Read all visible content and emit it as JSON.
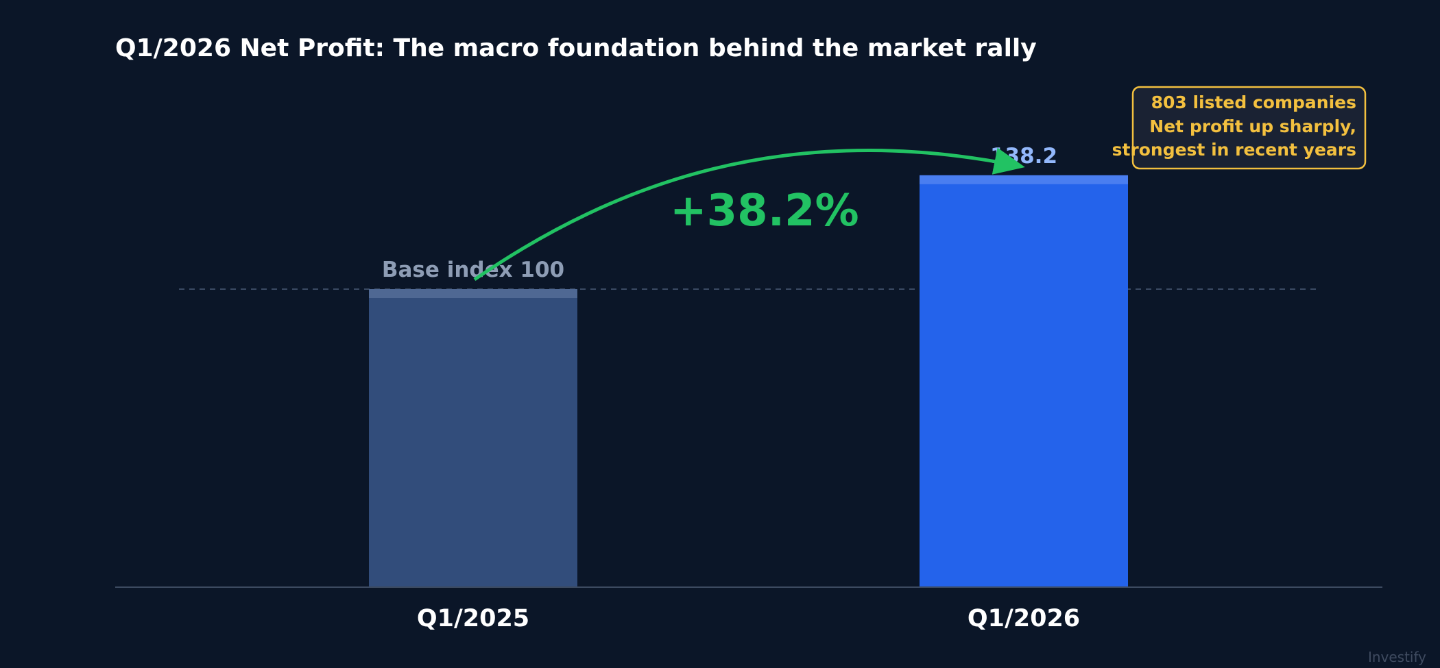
{
  "chart_data": {
    "type": "bar",
    "title": "Q1/2026 Net Profit: The macro foundation behind the market rally",
    "categories": [
      "Q1/2025",
      "Q1/2026"
    ],
    "values": [
      100,
      138.2
    ],
    "value_labels": [
      "Base index 100",
      "138.2"
    ],
    "ylim": [
      0,
      155
    ],
    "reference_line": {
      "value": 100,
      "style": "dashed"
    },
    "xlabel": "",
    "ylabel": "",
    "grid": false,
    "legend": "none",
    "annotations": {
      "growth": "+38.2%",
      "callout": [
        "803 listed companies",
        "Net profit up sharply,",
        "strongest in recent years"
      ]
    },
    "colors": {
      "background": "#0b1628",
      "bar_base": "#324d7b",
      "bar_current": "#2463eb",
      "arrow": "#22c263",
      "callout": "#f3c03f"
    }
  },
  "watermark": "Investify"
}
